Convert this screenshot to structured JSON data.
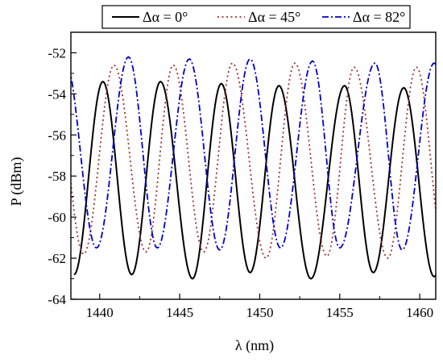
{
  "chart_data": {
    "type": "line",
    "title": "",
    "xlabel": "λ (nm)",
    "ylabel": "P (dBm)",
    "xlim": [
      1438.2,
      1461
    ],
    "ylim": [
      -64,
      -51
    ],
    "xticks": [
      1440,
      1445,
      1450,
      1455,
      1460
    ],
    "yticks": [
      -64,
      -62,
      -60,
      -58,
      -56,
      -54,
      -52
    ],
    "xtick_labels": [
      "1440",
      "1445",
      "1450",
      "1455",
      "1460"
    ],
    "ytick_labels": [
      "-64",
      "-62",
      "-60",
      "-58",
      "-56",
      "-54",
      "-52"
    ],
    "grid": false,
    "legend_position": "top",
    "legend_entries": [
      "Δα = 0°",
      "Δα = 45°",
      "Δα = 82°"
    ],
    "series": [
      {
        "name": "Δα = 0°",
        "style": "solid",
        "color": "#000000",
        "peaks": [
          {
            "x": 1440.2,
            "y": -53.4
          },
          {
            "x": 1443.8,
            "y": -53.4
          },
          {
            "x": 1447.6,
            "y": -53.5
          },
          {
            "x": 1451.2,
            "y": -53.6
          },
          {
            "x": 1455.3,
            "y": -53.6
          },
          {
            "x": 1459.0,
            "y": -53.7
          }
        ],
        "valleys": [
          {
            "x": 1442.0,
            "y": -62.8
          },
          {
            "x": 1445.8,
            "y": -63.0
          },
          {
            "x": 1449.4,
            "y": -62.7
          },
          {
            "x": 1453.2,
            "y": -63.0
          },
          {
            "x": 1457.1,
            "y": -62.7
          },
          {
            "x": 1460.9,
            "y": -62.9
          }
        ]
      },
      {
        "name": "Δα = 45°",
        "style": "dotted",
        "color": "#a0302a",
        "peaks": [
          {
            "x": 1440.9,
            "y": -52.6
          },
          {
            "x": 1444.6,
            "y": -52.6
          },
          {
            "x": 1448.3,
            "y": -52.5
          },
          {
            "x": 1452.2,
            "y": -52.5
          },
          {
            "x": 1455.9,
            "y": -52.7
          },
          {
            "x": 1459.8,
            "y": -52.7
          }
        ],
        "valleys": [
          {
            "x": 1439.0,
            "y": -61.8
          },
          {
            "x": 1442.9,
            "y": -61.7
          },
          {
            "x": 1446.5,
            "y": -61.7
          },
          {
            "x": 1450.4,
            "y": -62.0
          },
          {
            "x": 1454.2,
            "y": -61.9
          },
          {
            "x": 1458.0,
            "y": -62.0
          }
        ]
      },
      {
        "name": "Δα = 82°",
        "style": "dashdot",
        "color": "#0000cc",
        "peaks": [
          {
            "x": 1441.8,
            "y": -52.2
          },
          {
            "x": 1445.6,
            "y": -52.3
          },
          {
            "x": 1449.4,
            "y": -52.3
          },
          {
            "x": 1453.3,
            "y": -52.4
          },
          {
            "x": 1457.2,
            "y": -52.5
          },
          {
            "x": 1460.9,
            "y": -52.5
          }
        ],
        "valleys": [
          {
            "x": 1439.8,
            "y": -61.5
          },
          {
            "x": 1443.6,
            "y": -61.5
          },
          {
            "x": 1447.5,
            "y": -61.6
          },
          {
            "x": 1451.3,
            "y": -61.5
          },
          {
            "x": 1455.0,
            "y": -61.5
          },
          {
            "x": 1458.9,
            "y": -61.6
          }
        ]
      }
    ]
  }
}
